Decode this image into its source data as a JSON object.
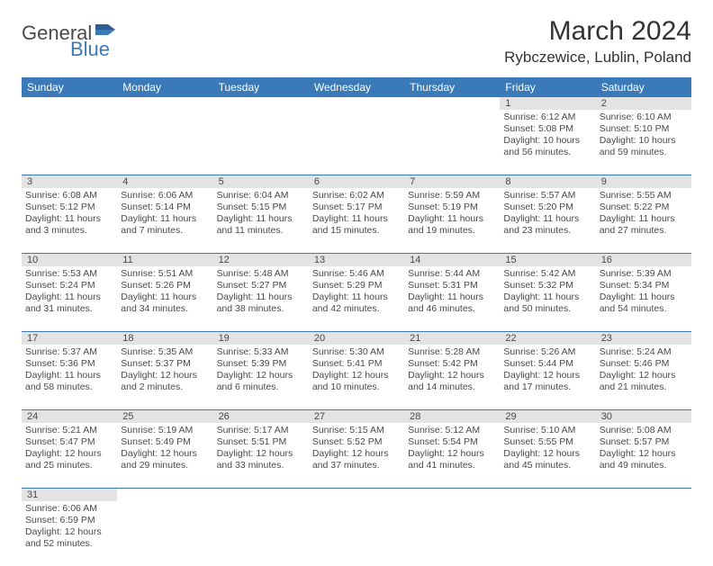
{
  "logo": {
    "text1": "General",
    "text2": "Blue"
  },
  "title": "March 2024",
  "location": "Rybczewice, Lublin, Poland",
  "colors": {
    "header_bg": "#3b7ab8",
    "header_text": "#ffffff",
    "daynum_bg": "#e3e3e3",
    "rule": "#3b7ab8",
    "text": "#4a4a4a"
  },
  "weekdays": [
    "Sunday",
    "Monday",
    "Tuesday",
    "Wednesday",
    "Thursday",
    "Friday",
    "Saturday"
  ],
  "weeks": [
    [
      {
        "n": "",
        "sr": "",
        "ss": "",
        "dl": ""
      },
      {
        "n": "",
        "sr": "",
        "ss": "",
        "dl": ""
      },
      {
        "n": "",
        "sr": "",
        "ss": "",
        "dl": ""
      },
      {
        "n": "",
        "sr": "",
        "ss": "",
        "dl": ""
      },
      {
        "n": "",
        "sr": "",
        "ss": "",
        "dl": ""
      },
      {
        "n": "1",
        "sr": "Sunrise: 6:12 AM",
        "ss": "Sunset: 5:08 PM",
        "dl": "Daylight: 10 hours and 56 minutes."
      },
      {
        "n": "2",
        "sr": "Sunrise: 6:10 AM",
        "ss": "Sunset: 5:10 PM",
        "dl": "Daylight: 10 hours and 59 minutes."
      }
    ],
    [
      {
        "n": "3",
        "sr": "Sunrise: 6:08 AM",
        "ss": "Sunset: 5:12 PM",
        "dl": "Daylight: 11 hours and 3 minutes."
      },
      {
        "n": "4",
        "sr": "Sunrise: 6:06 AM",
        "ss": "Sunset: 5:14 PM",
        "dl": "Daylight: 11 hours and 7 minutes."
      },
      {
        "n": "5",
        "sr": "Sunrise: 6:04 AM",
        "ss": "Sunset: 5:15 PM",
        "dl": "Daylight: 11 hours and 11 minutes."
      },
      {
        "n": "6",
        "sr": "Sunrise: 6:02 AM",
        "ss": "Sunset: 5:17 PM",
        "dl": "Daylight: 11 hours and 15 minutes."
      },
      {
        "n": "7",
        "sr": "Sunrise: 5:59 AM",
        "ss": "Sunset: 5:19 PM",
        "dl": "Daylight: 11 hours and 19 minutes."
      },
      {
        "n": "8",
        "sr": "Sunrise: 5:57 AM",
        "ss": "Sunset: 5:20 PM",
        "dl": "Daylight: 11 hours and 23 minutes."
      },
      {
        "n": "9",
        "sr": "Sunrise: 5:55 AM",
        "ss": "Sunset: 5:22 PM",
        "dl": "Daylight: 11 hours and 27 minutes."
      }
    ],
    [
      {
        "n": "10",
        "sr": "Sunrise: 5:53 AM",
        "ss": "Sunset: 5:24 PM",
        "dl": "Daylight: 11 hours and 31 minutes."
      },
      {
        "n": "11",
        "sr": "Sunrise: 5:51 AM",
        "ss": "Sunset: 5:26 PM",
        "dl": "Daylight: 11 hours and 34 minutes."
      },
      {
        "n": "12",
        "sr": "Sunrise: 5:48 AM",
        "ss": "Sunset: 5:27 PM",
        "dl": "Daylight: 11 hours and 38 minutes."
      },
      {
        "n": "13",
        "sr": "Sunrise: 5:46 AM",
        "ss": "Sunset: 5:29 PM",
        "dl": "Daylight: 11 hours and 42 minutes."
      },
      {
        "n": "14",
        "sr": "Sunrise: 5:44 AM",
        "ss": "Sunset: 5:31 PM",
        "dl": "Daylight: 11 hours and 46 minutes."
      },
      {
        "n": "15",
        "sr": "Sunrise: 5:42 AM",
        "ss": "Sunset: 5:32 PM",
        "dl": "Daylight: 11 hours and 50 minutes."
      },
      {
        "n": "16",
        "sr": "Sunrise: 5:39 AM",
        "ss": "Sunset: 5:34 PM",
        "dl": "Daylight: 11 hours and 54 minutes."
      }
    ],
    [
      {
        "n": "17",
        "sr": "Sunrise: 5:37 AM",
        "ss": "Sunset: 5:36 PM",
        "dl": "Daylight: 11 hours and 58 minutes."
      },
      {
        "n": "18",
        "sr": "Sunrise: 5:35 AM",
        "ss": "Sunset: 5:37 PM",
        "dl": "Daylight: 12 hours and 2 minutes."
      },
      {
        "n": "19",
        "sr": "Sunrise: 5:33 AM",
        "ss": "Sunset: 5:39 PM",
        "dl": "Daylight: 12 hours and 6 minutes."
      },
      {
        "n": "20",
        "sr": "Sunrise: 5:30 AM",
        "ss": "Sunset: 5:41 PM",
        "dl": "Daylight: 12 hours and 10 minutes."
      },
      {
        "n": "21",
        "sr": "Sunrise: 5:28 AM",
        "ss": "Sunset: 5:42 PM",
        "dl": "Daylight: 12 hours and 14 minutes."
      },
      {
        "n": "22",
        "sr": "Sunrise: 5:26 AM",
        "ss": "Sunset: 5:44 PM",
        "dl": "Daylight: 12 hours and 17 minutes."
      },
      {
        "n": "23",
        "sr": "Sunrise: 5:24 AM",
        "ss": "Sunset: 5:46 PM",
        "dl": "Daylight: 12 hours and 21 minutes."
      }
    ],
    [
      {
        "n": "24",
        "sr": "Sunrise: 5:21 AM",
        "ss": "Sunset: 5:47 PM",
        "dl": "Daylight: 12 hours and 25 minutes."
      },
      {
        "n": "25",
        "sr": "Sunrise: 5:19 AM",
        "ss": "Sunset: 5:49 PM",
        "dl": "Daylight: 12 hours and 29 minutes."
      },
      {
        "n": "26",
        "sr": "Sunrise: 5:17 AM",
        "ss": "Sunset: 5:51 PM",
        "dl": "Daylight: 12 hours and 33 minutes."
      },
      {
        "n": "27",
        "sr": "Sunrise: 5:15 AM",
        "ss": "Sunset: 5:52 PM",
        "dl": "Daylight: 12 hours and 37 minutes."
      },
      {
        "n": "28",
        "sr": "Sunrise: 5:12 AM",
        "ss": "Sunset: 5:54 PM",
        "dl": "Daylight: 12 hours and 41 minutes."
      },
      {
        "n": "29",
        "sr": "Sunrise: 5:10 AM",
        "ss": "Sunset: 5:55 PM",
        "dl": "Daylight: 12 hours and 45 minutes."
      },
      {
        "n": "30",
        "sr": "Sunrise: 5:08 AM",
        "ss": "Sunset: 5:57 PM",
        "dl": "Daylight: 12 hours and 49 minutes."
      }
    ],
    [
      {
        "n": "31",
        "sr": "Sunrise: 6:06 AM",
        "ss": "Sunset: 6:59 PM",
        "dl": "Daylight: 12 hours and 52 minutes."
      },
      {
        "n": "",
        "sr": "",
        "ss": "",
        "dl": ""
      },
      {
        "n": "",
        "sr": "",
        "ss": "",
        "dl": ""
      },
      {
        "n": "",
        "sr": "",
        "ss": "",
        "dl": ""
      },
      {
        "n": "",
        "sr": "",
        "ss": "",
        "dl": ""
      },
      {
        "n": "",
        "sr": "",
        "ss": "",
        "dl": ""
      },
      {
        "n": "",
        "sr": "",
        "ss": "",
        "dl": ""
      }
    ]
  ]
}
